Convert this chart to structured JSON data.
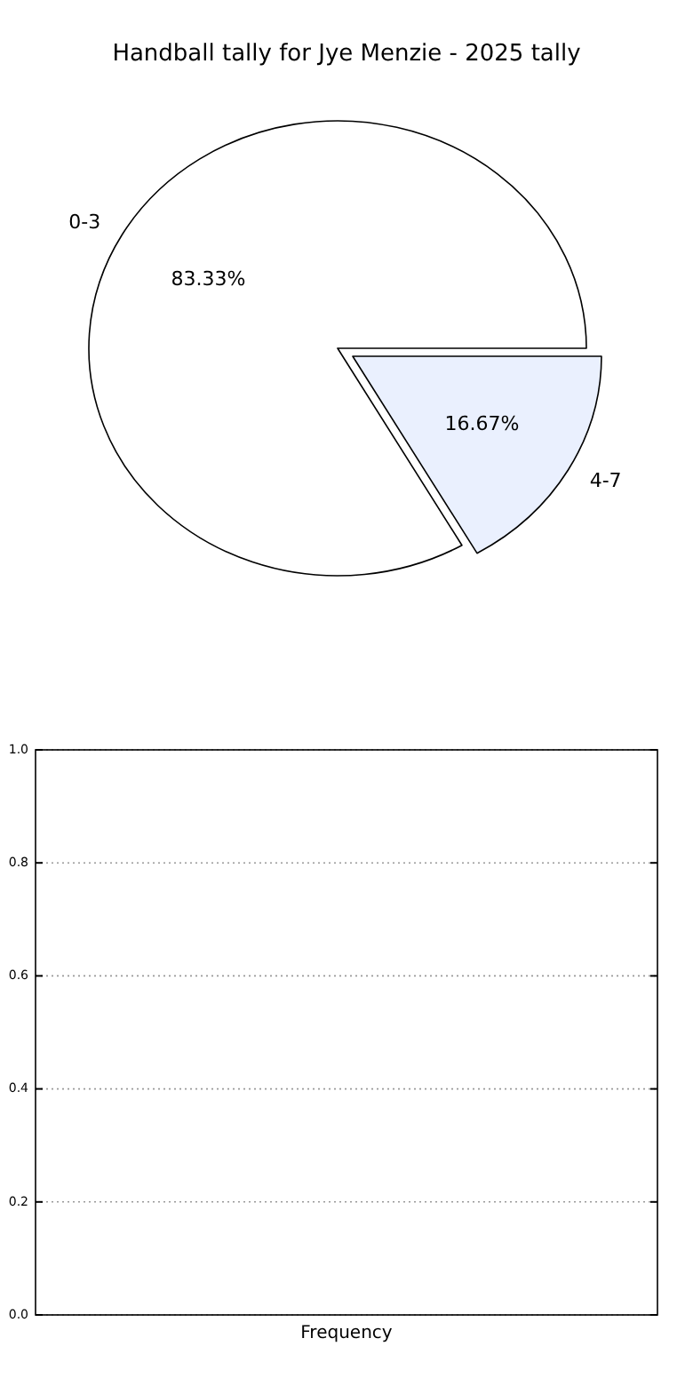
{
  "chart_data": [
    {
      "type": "pie",
      "title": "Handball tally for Jye Menzie - 2025 tally",
      "categories": [
        "0-3",
        "4-7"
      ],
      "values": [
        83.33,
        16.67
      ],
      "colors": [
        "#ffffff",
        "#eaf0fe"
      ],
      "value_labels": [
        "83.33%",
        "16.67%"
      ]
    },
    {
      "type": "bar",
      "categories": [
        null
      ],
      "values": [
        null
      ],
      "xlabel": "Frequency",
      "ylim": [
        0,
        1
      ],
      "yticks": [
        {
          "value": 0,
          "label": "0.0"
        },
        {
          "value": 0.2,
          "label": "0.2"
        },
        {
          "value": 0.4,
          "label": "0.4"
        },
        {
          "value": 0.6,
          "label": "0.6"
        },
        {
          "value": 0.8,
          "label": "0.8"
        },
        {
          "value": 1,
          "label": "1.0"
        }
      ],
      "grid": "y"
    }
  ]
}
